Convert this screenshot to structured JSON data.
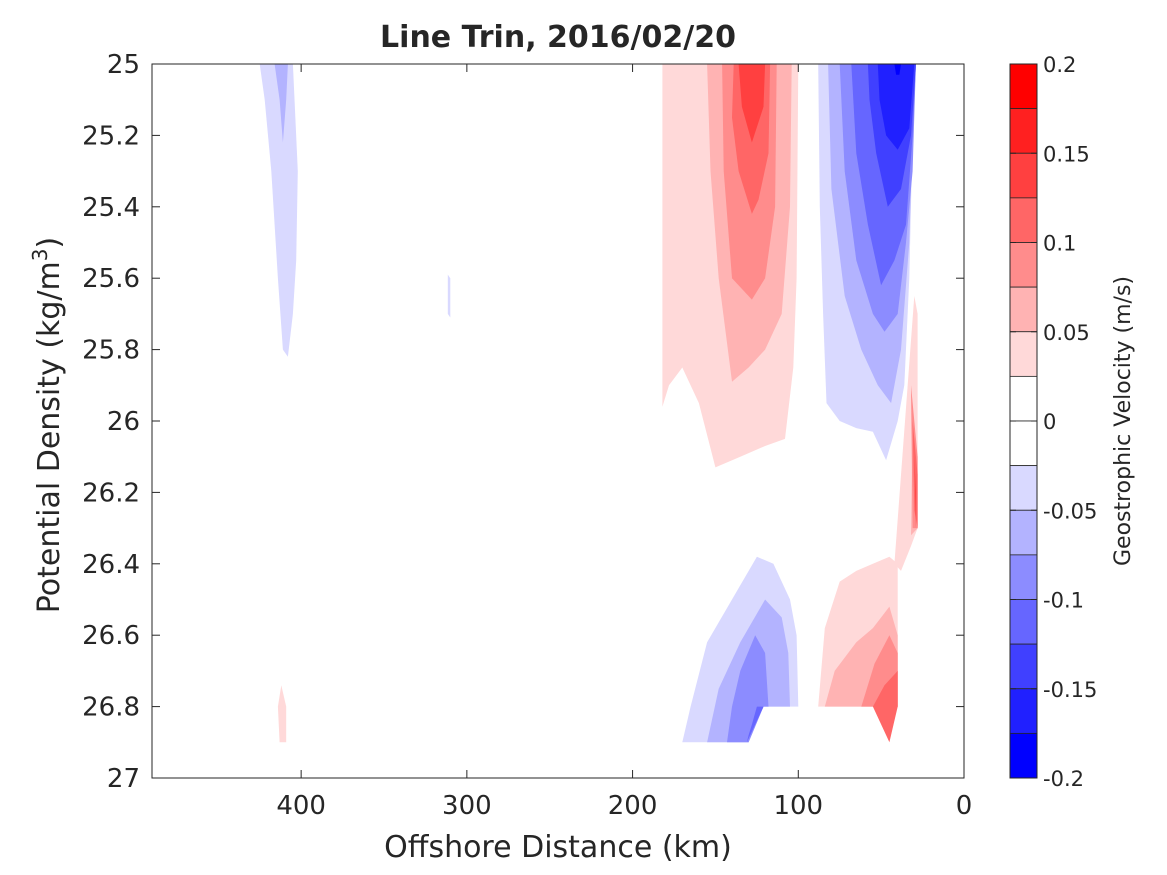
{
  "chart_data": {
    "type": "contour",
    "title": "Line Trin, 2016/02/20",
    "xlabel": "Offshore Distance (km)",
    "ylabel_main": "Potential Density (kg/m",
    "ylabel_sup": "3",
    "ylabel_close": ")",
    "xlim": [
      490,
      0
    ],
    "ylim": [
      25,
      27
    ],
    "xticks": [
      400,
      300,
      200,
      100,
      0
    ],
    "xtick_labels": [
      "400",
      "300",
      "200",
      "100",
      "0"
    ],
    "yticks": [
      25,
      25.2,
      25.4,
      25.6,
      25.8,
      26,
      26.2,
      26.4,
      26.6,
      26.8,
      27
    ],
    "ytick_labels": [
      "25",
      "25.2",
      "25.4",
      "25.6",
      "25.8",
      "26",
      "26.2",
      "26.4",
      "26.6",
      "26.8",
      "27"
    ],
    "colorbar": {
      "label": "Geostrophic Velocity (m/s)",
      "range": [
        -0.2,
        0.2
      ],
      "tick_values": [
        0.2,
        0.15,
        0.1,
        0.05,
        0,
        -0.05,
        -0.1,
        -0.15,
        -0.2
      ],
      "tick_labels": [
        "0.2",
        "0.15",
        "0.1",
        "0.05",
        "0",
        "-0.05",
        "-0.1",
        "-0.15",
        "-0.2"
      ],
      "levels": [
        {
          "range": [
            0.175,
            0.2
          ],
          "color": "#ff0000"
        },
        {
          "range": [
            0.15,
            0.175
          ],
          "color": "#ff2020"
        },
        {
          "range": [
            0.125,
            0.15
          ],
          "color": "#ff4040"
        },
        {
          "range": [
            0.1,
            0.125
          ],
          "color": "#ff6666"
        },
        {
          "range": [
            0.075,
            0.1
          ],
          "color": "#ff8c8c"
        },
        {
          "range": [
            0.05,
            0.075
          ],
          "color": "#ffb3b3"
        },
        {
          "range": [
            0.025,
            0.05
          ],
          "color": "#ffd9d9"
        },
        {
          "range": [
            0,
            0.025
          ],
          "color": "#ffffff"
        },
        {
          "range": [
            -0.025,
            0
          ],
          "color": "#ffffff"
        },
        {
          "range": [
            -0.05,
            -0.025
          ],
          "color": "#d9d9ff"
        },
        {
          "range": [
            -0.075,
            -0.05
          ],
          "color": "#b3b3ff"
        },
        {
          "range": [
            -0.1,
            -0.075
          ],
          "color": "#8c8cff"
        },
        {
          "range": [
            -0.125,
            -0.1
          ],
          "color": "#6666ff"
        },
        {
          "range": [
            -0.15,
            -0.125
          ],
          "color": "#4040ff"
        },
        {
          "range": [
            -0.175,
            -0.15
          ],
          "color": "#2020ff"
        },
        {
          "range": [
            -0.2,
            -0.175
          ],
          "color": "#0000ff"
        }
      ]
    },
    "contours": [
      {
        "name": "far-offshore-neg-1",
        "level": -0.05,
        "color": "#d9d9ff",
        "points": [
          [
            425,
            25
          ],
          [
            413,
            25
          ],
          [
            405,
            25
          ],
          [
            402,
            25.3
          ],
          [
            403,
            25.55
          ],
          [
            405,
            25.7
          ],
          [
            408,
            25.82
          ],
          [
            411,
            25.8
          ],
          [
            414,
            25.6
          ],
          [
            418,
            25.3
          ],
          [
            422,
            25.1
          ]
        ]
      },
      {
        "name": "far-offshore-neg-2",
        "level": -0.075,
        "color": "#b3b3ff",
        "points": [
          [
            416,
            25
          ],
          [
            408,
            25
          ],
          [
            409,
            25.1
          ],
          [
            411,
            25.22
          ],
          [
            413,
            25.1
          ]
        ]
      },
      {
        "name": "mid-speck-neg",
        "level": -0.05,
        "color": "#d9d9ff",
        "points": [
          [
            311.5,
            25.59
          ],
          [
            310,
            25.6
          ],
          [
            310,
            25.71
          ],
          [
            311.5,
            25.7
          ]
        ]
      },
      {
        "name": "bottom-speck-pos",
        "level": 0.05,
        "color": "#ffd9d9",
        "points": [
          [
            414,
            26.8
          ],
          [
            412,
            26.74
          ],
          [
            409,
            26.8
          ],
          [
            409,
            26.9
          ],
          [
            413,
            26.9
          ]
        ]
      },
      {
        "name": "upper-jet-pos-1",
        "level": 0.05,
        "color": "#ffd9d9",
        "points": [
          [
            182,
            25
          ],
          [
            100,
            25
          ],
          [
            101,
            25.6
          ],
          [
            103,
            25.85
          ],
          [
            108,
            26.05
          ],
          [
            120,
            26.07
          ],
          [
            135,
            26.1
          ],
          [
            150,
            26.13
          ],
          [
            160,
            25.95
          ],
          [
            170,
            25.85
          ],
          [
            178,
            25.9
          ],
          [
            182,
            25.96
          ]
        ]
      },
      {
        "name": "upper-jet-pos-2",
        "level": 0.075,
        "color": "#ffb3b3",
        "points": [
          [
            155,
            25
          ],
          [
            104,
            25
          ],
          [
            105,
            25.4
          ],
          [
            110,
            25.7
          ],
          [
            120,
            25.8
          ],
          [
            130,
            25.85
          ],
          [
            140,
            25.89
          ],
          [
            148,
            25.6
          ],
          [
            153,
            25.3
          ]
        ]
      },
      {
        "name": "upper-jet-pos-3",
        "level": 0.1,
        "color": "#ff8c8c",
        "points": [
          [
            146,
            25
          ],
          [
            113,
            25
          ],
          [
            114,
            25.4
          ],
          [
            120,
            25.6
          ],
          [
            128,
            25.66
          ],
          [
            140,
            25.6
          ],
          [
            145,
            25.3
          ]
        ]
      },
      {
        "name": "upper-jet-pos-4",
        "level": 0.125,
        "color": "#ff6666",
        "points": [
          [
            139,
            25
          ],
          [
            117,
            25
          ],
          [
            118,
            25.25
          ],
          [
            124,
            25.38
          ],
          [
            128,
            25.42
          ],
          [
            136,
            25.3
          ],
          [
            140,
            25.15
          ]
        ]
      },
      {
        "name": "upper-jet-pos-5",
        "level": 0.15,
        "color": "#ff4040",
        "points": [
          [
            136,
            25
          ],
          [
            120,
            25
          ],
          [
            121,
            25.12
          ],
          [
            128,
            25.22
          ],
          [
            134,
            25.12
          ]
        ]
      },
      {
        "name": "coastal-jet-neg-1",
        "level": -0.05,
        "color": "#d9d9ff",
        "points": [
          [
            88,
            25
          ],
          [
            29,
            25
          ],
          [
            31,
            25.2
          ],
          [
            33,
            25.6
          ],
          [
            36,
            25.9
          ],
          [
            40,
            26
          ],
          [
            47,
            26.11
          ],
          [
            55,
            26.03
          ],
          [
            65,
            26.02
          ],
          [
            75,
            26
          ],
          [
            83,
            25.95
          ],
          [
            85,
            25.7
          ],
          [
            87,
            25.4
          ]
        ]
      },
      {
        "name": "coastal-jet-neg-2",
        "level": -0.075,
        "color": "#b3b3ff",
        "points": [
          [
            82,
            25
          ],
          [
            29,
            25
          ],
          [
            31,
            25.2
          ],
          [
            33,
            25.5
          ],
          [
            38,
            25.8
          ],
          [
            44,
            25.95
          ],
          [
            52,
            25.9
          ],
          [
            62,
            25.8
          ],
          [
            72,
            25.65
          ],
          [
            80,
            25.35
          ]
        ]
      },
      {
        "name": "coastal-jet-neg-3",
        "level": -0.1,
        "color": "#8c8cff",
        "points": [
          [
            75,
            25
          ],
          [
            29,
            25
          ],
          [
            31,
            25.3
          ],
          [
            35,
            25.5
          ],
          [
            40,
            25.7
          ],
          [
            48,
            25.75
          ],
          [
            55,
            25.7
          ],
          [
            65,
            25.55
          ],
          [
            72,
            25.3
          ]
        ]
      },
      {
        "name": "coastal-jet-neg-4",
        "level": -0.125,
        "color": "#6666ff",
        "points": [
          [
            68,
            25
          ],
          [
            29,
            25
          ],
          [
            31,
            25.2
          ],
          [
            35,
            25.45
          ],
          [
            42,
            25.55
          ],
          [
            50,
            25.62
          ],
          [
            58,
            25.45
          ],
          [
            65,
            25.25
          ]
        ]
      },
      {
        "name": "coastal-jet-neg-5",
        "level": -0.15,
        "color": "#4040ff",
        "points": [
          [
            58,
            25
          ],
          [
            29,
            25
          ],
          [
            32,
            25.2
          ],
          [
            38,
            25.35
          ],
          [
            46,
            25.4
          ],
          [
            53,
            25.25
          ],
          [
            57,
            25.1
          ]
        ]
      },
      {
        "name": "coastal-jet-neg-6",
        "level": -0.175,
        "color": "#2020ff",
        "points": [
          [
            52,
            25
          ],
          [
            30,
            25
          ],
          [
            33,
            25.18
          ],
          [
            40,
            25.24
          ],
          [
            47,
            25.2
          ],
          [
            51,
            25.1
          ]
        ]
      },
      {
        "name": "coastal-jet-neg-7",
        "level": -0.2,
        "color": "#0000ff",
        "points": [
          [
            42,
            25
          ],
          [
            38,
            25
          ],
          [
            39,
            25.03
          ],
          [
            41,
            25.03
          ]
        ]
      },
      {
        "name": "coastal-jet-pos-1",
        "level": 0.05,
        "color": "#ffd9d9",
        "points": [
          [
            30,
            25.65
          ],
          [
            28,
            25.7
          ],
          [
            28,
            26.3
          ],
          [
            32,
            26.35
          ],
          [
            38,
            26.42
          ],
          [
            42,
            26.4
          ]
        ]
      },
      {
        "name": "coastal-jet-pos-2",
        "level": 0.075,
        "color": "#ffb3b3",
        "points": [
          [
            31,
            26
          ],
          [
            28,
            26.1
          ],
          [
            28,
            26.3
          ],
          [
            32,
            26.32
          ]
        ]
      },
      {
        "name": "coastal-jet-pos-3",
        "level": 0.1,
        "color": "#ff8c8c",
        "points": [
          [
            32,
            25.9
          ],
          [
            28,
            26.1
          ],
          [
            28,
            26.3
          ],
          [
            31,
            26.3
          ]
        ]
      },
      {
        "name": "coastal-jet-pos-4",
        "level": 0.125,
        "color": "#ff6666",
        "points": [
          [
            31,
            26
          ],
          [
            28,
            26.15
          ],
          [
            28,
            26.3
          ],
          [
            30,
            26.25
          ]
        ]
      },
      {
        "name": "coastal-jet-pos-5",
        "level": 0.15,
        "color": "#ff4040",
        "points": [
          [
            30,
            26.1
          ],
          [
            29,
            26.2
          ],
          [
            29,
            26.3
          ]
        ]
      },
      {
        "name": "deep-offshore-neg-1",
        "level": -0.05,
        "color": "#d9d9ff",
        "points": [
          [
            170,
            26.9
          ],
          [
            152,
            26.9
          ],
          [
            140,
            26.9
          ],
          [
            130,
            26.9
          ],
          [
            121,
            26.8
          ],
          [
            100,
            26.8
          ],
          [
            101,
            26.6
          ],
          [
            105,
            26.5
          ],
          [
            115,
            26.4
          ],
          [
            125,
            26.38
          ],
          [
            140,
            26.5
          ],
          [
            155,
            26.62
          ],
          [
            165,
            26.8
          ]
        ]
      },
      {
        "name": "deep-offshore-neg-2",
        "level": -0.075,
        "color": "#b3b3ff",
        "points": [
          [
            155,
            26.9
          ],
          [
            140,
            26.9
          ],
          [
            130,
            26.9
          ],
          [
            121,
            26.8
          ],
          [
            105,
            26.8
          ],
          [
            106,
            26.65
          ],
          [
            110,
            26.55
          ],
          [
            120,
            26.5
          ],
          [
            135,
            26.62
          ],
          [
            148,
            26.75
          ]
        ]
      },
      {
        "name": "deep-offshore-neg-3",
        "level": -0.1,
        "color": "#8c8cff",
        "points": [
          [
            143,
            26.9
          ],
          [
            130,
            26.9
          ],
          [
            121,
            26.8
          ],
          [
            118,
            26.8
          ],
          [
            120,
            26.65
          ],
          [
            126,
            26.6
          ],
          [
            135,
            26.7
          ],
          [
            140,
            26.8
          ]
        ]
      },
      {
        "name": "deep-offshore-neg-4",
        "level": -0.125,
        "color": "#6666ff",
        "points": [
          [
            131,
            26.9
          ],
          [
            130,
            26.88
          ],
          [
            128,
            26.85
          ],
          [
            125,
            26.8
          ],
          [
            121,
            26.8
          ]
        ]
      },
      {
        "name": "deep-coastal-pos-1",
        "level": 0.05,
        "color": "#ffd9d9",
        "points": [
          [
            88,
            26.8
          ],
          [
            65,
            26.8
          ],
          [
            40,
            26.8
          ],
          [
            40,
            26.6
          ],
          [
            40,
            26.4
          ],
          [
            45,
            26.38
          ],
          [
            55,
            26.4
          ],
          [
            65,
            26.42
          ],
          [
            75,
            26.45
          ],
          [
            84,
            26.58
          ]
        ]
      },
      {
        "name": "deep-coastal-pos-2",
        "level": 0.075,
        "color": "#ffb3b3",
        "points": [
          [
            84,
            26.8
          ],
          [
            65,
            26.8
          ],
          [
            40,
            26.8
          ],
          [
            40,
            26.6
          ],
          [
            45,
            26.52
          ],
          [
            55,
            26.58
          ],
          [
            65,
            26.62
          ],
          [
            78,
            26.7
          ]
        ]
      },
      {
        "name": "deep-coastal-pos-3",
        "level": 0.1,
        "color": "#ff8c8c",
        "points": [
          [
            62,
            26.8
          ],
          [
            52,
            26.8
          ],
          [
            40,
            26.8
          ],
          [
            40,
            26.65
          ],
          [
            45,
            26.6
          ],
          [
            54,
            26.68
          ]
        ]
      },
      {
        "name": "deep-coastal-pos-4",
        "level": 0.125,
        "color": "#ff6666",
        "points": [
          [
            55,
            26.8
          ],
          [
            45,
            26.9
          ],
          [
            40,
            26.8
          ],
          [
            40,
            26.7
          ],
          [
            48,
            26.74
          ]
        ]
      }
    ]
  }
}
